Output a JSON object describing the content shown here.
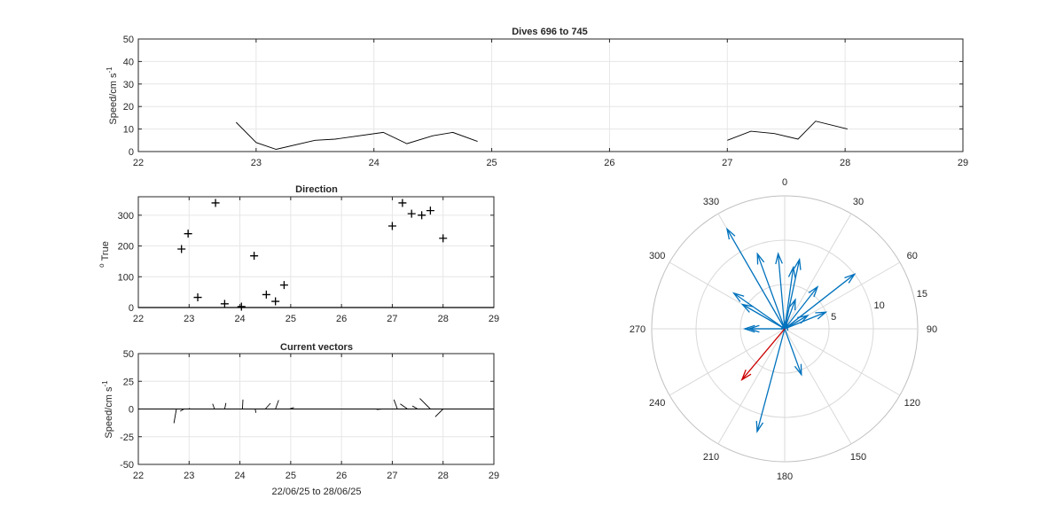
{
  "chart_data": [
    {
      "type": "line",
      "title": "Dives 696 to 745",
      "ylabel": "Speed/cm s",
      "ylabel_superscript": "-1",
      "xlim": [
        22,
        29
      ],
      "ylim": [
        0,
        50
      ],
      "xticks": [
        "22",
        "23",
        "24",
        "25",
        "26",
        "27",
        "28",
        "29"
      ],
      "yticks": [
        "0",
        "10",
        "20",
        "30",
        "40",
        "50"
      ],
      "grid": true,
      "series": [
        {
          "segments": [
            [
              [
                22.83,
                13
              ],
              [
                23.0,
                4
              ],
              [
                23.17,
                1
              ],
              [
                23.5,
                5
              ],
              [
                23.67,
                5.5
              ],
              [
                24.08,
                8.5
              ],
              [
                24.28,
                3.5
              ],
              [
                24.5,
                7
              ],
              [
                24.67,
                8.5
              ],
              [
                24.88,
                4.5
              ]
            ],
            [
              [
                27.0,
                5
              ],
              [
                27.2,
                9
              ],
              [
                27.4,
                8
              ],
              [
                27.6,
                5.5
              ],
              [
                27.75,
                13.5
              ],
              [
                28.02,
                10
              ]
            ]
          ]
        }
      ]
    },
    {
      "type": "scatter",
      "title": "Direction",
      "ylabel": "True",
      "ylabel_prefix": "o",
      "xlim": [
        22,
        29
      ],
      "ylim": [
        0,
        360
      ],
      "xticks": [
        "22",
        "23",
        "24",
        "25",
        "26",
        "27",
        "28",
        "29"
      ],
      "yticks": [
        "0",
        "100",
        "200",
        "300"
      ],
      "grid": true,
      "marker": "+",
      "points": [
        [
          22.85,
          190
        ],
        [
          22.98,
          240
        ],
        [
          23.17,
          33
        ],
        [
          23.52,
          340
        ],
        [
          23.7,
          12
        ],
        [
          24.03,
          3
        ],
        [
          24.28,
          168
        ],
        [
          24.52,
          42
        ],
        [
          24.7,
          20
        ],
        [
          24.87,
          73
        ],
        [
          27.0,
          265
        ],
        [
          27.2,
          340
        ],
        [
          27.38,
          305
        ],
        [
          27.58,
          300
        ],
        [
          27.75,
          315
        ],
        [
          28.0,
          225
        ]
      ]
    },
    {
      "type": "vector",
      "title": "Current vectors",
      "ylabel": "Speed/cm s",
      "ylabel_superscript": "-1",
      "xlabel": "22/06/25 to 28/06/25",
      "xlim": [
        22,
        29
      ],
      "ylim": [
        -50,
        50
      ],
      "xticks": [
        "22",
        "23",
        "24",
        "25",
        "26",
        "27",
        "28",
        "29"
      ],
      "yticks": [
        "-50",
        "-25",
        "0",
        "25",
        "50"
      ],
      "grid": true,
      "vectors": [
        [
          22.75,
          13,
          190
        ],
        [
          22.9,
          4,
          240
        ],
        [
          23.0,
          1,
          33
        ],
        [
          23.5,
          5,
          340
        ],
        [
          23.7,
          5.5,
          12
        ],
        [
          24.05,
          8.5,
          3
        ],
        [
          24.3,
          3.5,
          168
        ],
        [
          24.5,
          7,
          42
        ],
        [
          24.7,
          8.5,
          20
        ],
        [
          24.97,
          4.5,
          73
        ],
        [
          26.8,
          5,
          265
        ],
        [
          27.1,
          9,
          340
        ],
        [
          27.3,
          8,
          305
        ],
        [
          27.5,
          5.5,
          300
        ],
        [
          27.75,
          13.5,
          315
        ],
        [
          28.0,
          10,
          225
        ]
      ]
    },
    {
      "type": "polar",
      "angle_labels": [
        "0",
        "30",
        "60",
        "90",
        "120",
        "150",
        "180",
        "210",
        "240",
        "270",
        "300",
        "330"
      ],
      "radius_labels": [
        "5",
        "10",
        "15"
      ],
      "rmax": 15,
      "colors": {
        "vectors": "#0072BD",
        "mean": "#CC0000",
        "grid": "#D9D9D9"
      },
      "vectors": [
        [
          13,
          330
        ],
        [
          12,
          195
        ],
        [
          10,
          52
        ],
        [
          9,
          340
        ],
        [
          8.5,
          355
        ],
        [
          8,
          12
        ],
        [
          7,
          8
        ],
        [
          7,
          305
        ],
        [
          6,
          38
        ],
        [
          5.5,
          300
        ],
        [
          5,
          68
        ],
        [
          5.5,
          160
        ],
        [
          4,
          270
        ],
        [
          4.5,
          270
        ],
        [
          3.5,
          20
        ],
        [
          3,
          60
        ],
        [
          1,
          10
        ]
      ],
      "mean_vector": [
        7.5,
        220
      ]
    }
  ]
}
